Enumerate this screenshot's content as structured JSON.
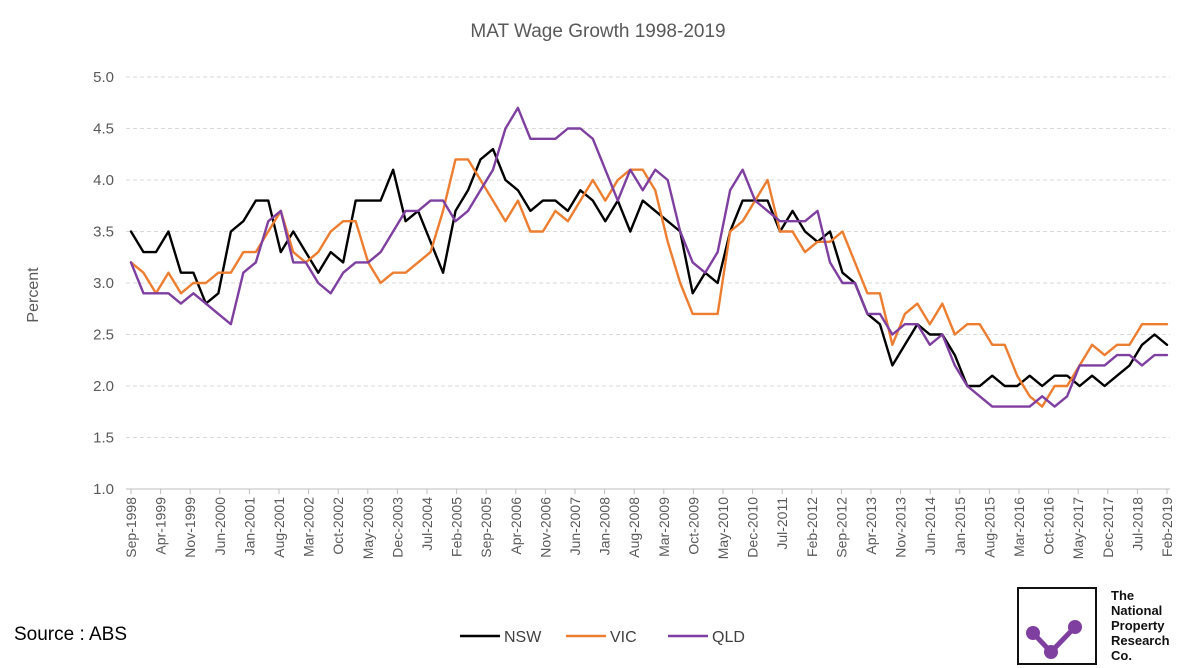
{
  "chart_data": {
    "type": "line",
    "title": "MAT Wage Growth 1998-2019",
    "xlabel": "",
    "ylabel": "Percent",
    "ylim": [
      1.0,
      5.0
    ],
    "yticks": [
      "1.0",
      "1.5",
      "2.0",
      "2.5",
      "3.0",
      "3.5",
      "4.0",
      "4.5",
      "5.0"
    ],
    "x_start": "Sep-1998",
    "x_end": "Feb-2019",
    "x_tick_labels": [
      "Sep-1998",
      "Apr-1999",
      "Nov-1999",
      "Jun-2000",
      "Jan-2001",
      "Aug-2001",
      "Mar-2002",
      "Oct-2002",
      "May-2003",
      "Dec-2003",
      "Jul-2004",
      "Feb-2005",
      "Sep-2005",
      "Apr-2006",
      "Nov-2006",
      "Jun-2007",
      "Jan-2008",
      "Aug-2008",
      "Mar-2009",
      "Oct-2009",
      "May-2010",
      "Dec-2010",
      "Jul-2011",
      "Feb-2012",
      "Sep-2012",
      "Apr-2013",
      "Nov-2013",
      "Jun-2014",
      "Jan-2015",
      "Aug-2015",
      "Mar-2016",
      "Oct-2016",
      "May-2017",
      "Dec-2017",
      "Jul-2018",
      "Feb-2019"
    ],
    "grid": "horizontal dashed",
    "legend_position": "bottom",
    "series": [
      {
        "name": "NSW",
        "color": "#000000",
        "values": [
          3.5,
          3.3,
          3.3,
          3.5,
          3.1,
          3.1,
          2.8,
          2.9,
          3.5,
          3.6,
          3.8,
          3.8,
          3.3,
          3.5,
          3.3,
          3.1,
          3.3,
          3.2,
          3.8,
          3.8,
          3.8,
          4.1,
          3.6,
          3.7,
          3.4,
          3.1,
          3.7,
          3.9,
          4.2,
          4.3,
          4.0,
          3.9,
          3.7,
          3.8,
          3.8,
          3.7,
          3.9,
          3.8,
          3.6,
          3.8,
          3.5,
          3.8,
          3.7,
          3.6,
          3.5,
          2.9,
          3.1,
          3.0,
          3.5,
          3.8,
          3.8,
          3.8,
          3.5,
          3.7,
          3.5,
          3.4,
          3.5,
          3.1,
          3.0,
          2.7,
          2.6,
          2.2,
          2.4,
          2.6,
          2.5,
          2.5,
          2.3,
          2.0,
          2.0,
          2.1,
          2.0,
          2.0,
          2.1,
          2.0,
          2.1,
          2.1,
          2.0,
          2.1,
          2.0,
          2.1,
          2.2,
          2.4,
          2.5,
          2.4
        ]
      },
      {
        "name": "VIC",
        "color": "#ED7D31",
        "values": [
          3.2,
          3.1,
          2.9,
          3.1,
          2.9,
          3.0,
          3.0,
          3.1,
          3.1,
          3.3,
          3.3,
          3.5,
          3.7,
          3.3,
          3.2,
          3.3,
          3.5,
          3.6,
          3.6,
          3.2,
          3.0,
          3.1,
          3.1,
          3.2,
          3.3,
          3.7,
          4.2,
          4.2,
          4.0,
          3.8,
          3.6,
          3.8,
          3.5,
          3.5,
          3.7,
          3.6,
          3.8,
          4.0,
          3.8,
          4.0,
          4.1,
          4.1,
          3.9,
          3.4,
          3.0,
          2.7,
          2.7,
          2.7,
          3.5,
          3.6,
          3.8,
          4.0,
          3.5,
          3.5,
          3.3,
          3.4,
          3.4,
          3.5,
          3.2,
          2.9,
          2.9,
          2.4,
          2.7,
          2.8,
          2.6,
          2.8,
          2.5,
          2.6,
          2.6,
          2.4,
          2.4,
          2.1,
          1.9,
          1.8,
          2.0,
          2.0,
          2.2,
          2.4,
          2.3,
          2.4,
          2.4,
          2.6,
          2.6,
          2.6
        ]
      },
      {
        "name": "QLD",
        "color": "#7E3FA0",
        "values": [
          3.2,
          2.9,
          2.9,
          2.9,
          2.8,
          2.9,
          2.8,
          2.7,
          2.6,
          3.1,
          3.2,
          3.6,
          3.7,
          3.2,
          3.2,
          3.0,
          2.9,
          3.1,
          3.2,
          3.2,
          3.3,
          3.5,
          3.7,
          3.7,
          3.8,
          3.8,
          3.6,
          3.7,
          3.9,
          4.1,
          4.5,
          4.7,
          4.4,
          4.4,
          4.4,
          4.5,
          4.5,
          4.4,
          4.1,
          3.8,
          4.1,
          3.9,
          4.1,
          4.0,
          3.5,
          3.2,
          3.1,
          3.3,
          3.9,
          4.1,
          3.8,
          3.7,
          3.6,
          3.6,
          3.6,
          3.7,
          3.2,
          3.0,
          3.0,
          2.7,
          2.7,
          2.5,
          2.6,
          2.6,
          2.4,
          2.5,
          2.2,
          2.0,
          1.9,
          1.8,
          1.8,
          1.8,
          1.8,
          1.9,
          1.8,
          1.9,
          2.2,
          2.2,
          2.2,
          2.3,
          2.3,
          2.2,
          2.3,
          2.3
        ]
      }
    ],
    "legend": [
      {
        "name": "NSW",
        "color": "#000000"
      },
      {
        "name": "VIC",
        "color": "#ED7D31"
      },
      {
        "name": "QLD",
        "color": "#7E3FA0"
      }
    ]
  },
  "source": "Source : ABS",
  "logo": {
    "lines": [
      "The",
      "National",
      "Property",
      "Research",
      "Co."
    ],
    "color": "#7E3FA0"
  }
}
